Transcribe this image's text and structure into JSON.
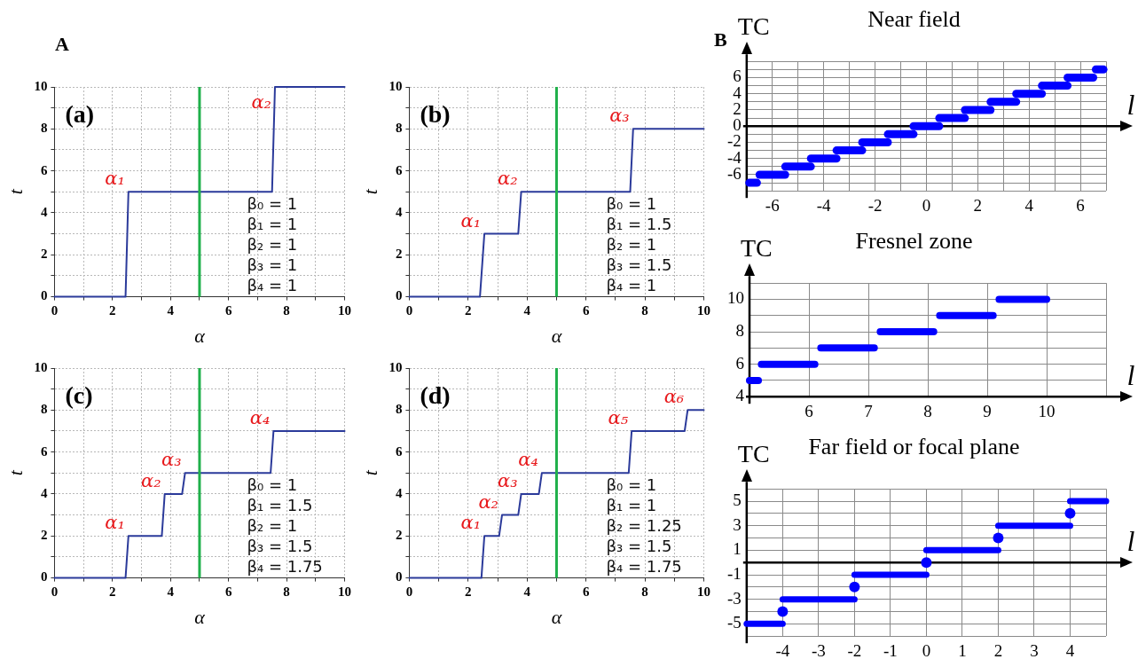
{
  "chart_data": [
    {
      "type": "line",
      "title": "(a)",
      "xlabel": "α",
      "ylabel": "t",
      "xlim": [
        0,
        10
      ],
      "ylim": [
        0,
        10
      ],
      "xticks": [
        0,
        {
          "value": 1,
          "label": null
        },
        2,
        {
          "value": 3,
          "label": null
        },
        4,
        {
          "value": 5,
          "label": null
        },
        6,
        {
          "value": 7,
          "label": null
        },
        8,
        {
          "value": 9,
          "label": null
        },
        10
      ],
      "yticks": [
        0,
        {
          "value": 1,
          "label": null
        },
        2,
        {
          "value": 3,
          "label": null
        },
        4,
        {
          "value": 5,
          "label": null
        },
        6,
        {
          "value": 7,
          "label": null
        },
        8,
        {
          "value": 9,
          "label": null
        },
        10
      ],
      "grid": true,
      "series": [
        {
          "type": "line",
          "color": "#2b3a9a",
          "x": [
            0,
            2.45,
            2.55,
            7.5,
            7.6,
            10
          ],
          "values": [
            0,
            0,
            5,
            5,
            10,
            10
          ]
        }
      ],
      "ref_lines": [
        {
          "axis": "x",
          "value": 5,
          "color": "#1fb04a"
        }
      ],
      "annotations": [
        "A",
        {
          "text": "α₁",
          "x": 2.55,
          "y": 5
        },
        {
          "text": "α₂",
          "x": 7.6,
          "y": 10
        },
        "β₀ = 1",
        "β₁ = 1",
        "β₂ = 1",
        "β₃ = 1",
        "β₄ = 1"
      ]
    },
    {
      "type": "line",
      "title": "(b)",
      "xlabel": "α",
      "ylabel": "t",
      "xlim": [
        0,
        10
      ],
      "ylim": [
        0,
        10
      ],
      "xticks": [
        0,
        {
          "value": 1,
          "label": null
        },
        2,
        {
          "value": 3,
          "label": null
        },
        4,
        {
          "value": 5,
          "label": null
        },
        6,
        {
          "value": 7,
          "label": null
        },
        8,
        {
          "value": 9,
          "label": null
        },
        10
      ],
      "yticks": [
        0,
        {
          "value": 1,
          "label": null
        },
        2,
        {
          "value": 3,
          "label": null
        },
        4,
        {
          "value": 5,
          "label": null
        },
        6,
        {
          "value": 7,
          "label": null
        },
        8,
        {
          "value": 9,
          "label": null
        },
        10
      ],
      "grid": true,
      "series": [
        {
          "type": "line",
          "color": "#2b3a9a",
          "x": [
            0,
            2.4,
            2.55,
            3.7,
            3.8,
            7.5,
            7.6,
            10
          ],
          "values": [
            0,
            0,
            3,
            3,
            5,
            5,
            8,
            8
          ]
        }
      ],
      "ref_lines": [
        {
          "axis": "x",
          "value": 5,
          "color": "#1fb04a"
        }
      ],
      "annotations": [
        {
          "text": "α₁",
          "x": 2.55,
          "y": 3
        },
        {
          "text": "α₂",
          "x": 3.8,
          "y": 5
        },
        {
          "text": "α₃",
          "x": 7.6,
          "y": 8
        },
        "β₀ = 1",
        "β₁ = 1.5",
        "β₂ = 1",
        "β₃ = 1.5",
        "β₄ = 1"
      ]
    },
    {
      "type": "line",
      "title": "(c)",
      "xlabel": "α",
      "ylabel": "t",
      "xlim": [
        0,
        10
      ],
      "ylim": [
        0,
        10
      ],
      "xticks": [
        0,
        {
          "value": 1,
          "label": null
        },
        2,
        {
          "value": 3,
          "label": null
        },
        4,
        {
          "value": 5,
          "label": null
        },
        6,
        {
          "value": 7,
          "label": null
        },
        8,
        {
          "value": 9,
          "label": null
        },
        10
      ],
      "yticks": [
        0,
        {
          "value": 1,
          "label": null
        },
        2,
        {
          "value": 3,
          "label": null
        },
        4,
        {
          "value": 5,
          "label": null
        },
        6,
        {
          "value": 7,
          "label": null
        },
        8,
        {
          "value": 9,
          "label": null
        },
        10
      ],
      "grid": true,
      "series": [
        {
          "type": "line",
          "color": "#2b3a9a",
          "x": [
            0,
            2.45,
            2.55,
            3.7,
            3.8,
            4.4,
            4.5,
            7.45,
            7.55,
            10
          ],
          "values": [
            0,
            0,
            2,
            2,
            4,
            4,
            5,
            5,
            7,
            7
          ]
        }
      ],
      "ref_lines": [
        {
          "axis": "x",
          "value": 5,
          "color": "#1fb04a"
        }
      ],
      "annotations": [
        {
          "text": "α₁",
          "x": 2.55,
          "y": 2
        },
        {
          "text": "α₂",
          "x": 3.8,
          "y": 4
        },
        {
          "text": "α₃",
          "x": 4.5,
          "y": 5
        },
        {
          "text": "α₄",
          "x": 7.55,
          "y": 7
        },
        "β₀ = 1",
        "β₁ = 1.5",
        "β₂ = 1",
        "β₃ = 1.5",
        "β₄ = 1.75"
      ]
    },
    {
      "type": "line",
      "title": "(d)",
      "xlabel": "α",
      "ylabel": "t",
      "xlim": [
        0,
        10
      ],
      "ylim": [
        0,
        10
      ],
      "xticks": [
        0,
        {
          "value": 1,
          "label": null
        },
        2,
        {
          "value": 3,
          "label": null
        },
        4,
        {
          "value": 5,
          "label": null
        },
        6,
        {
          "value": 7,
          "label": null
        },
        8,
        {
          "value": 9,
          "label": null
        },
        10
      ],
      "yticks": [
        0,
        {
          "value": 1,
          "label": null
        },
        2,
        {
          "value": 3,
          "label": null
        },
        4,
        {
          "value": 5,
          "label": null
        },
        6,
        {
          "value": 7,
          "label": null
        },
        8,
        {
          "value": 9,
          "label": null
        },
        10
      ],
      "grid": true,
      "series": [
        {
          "type": "line",
          "color": "#2b3a9a",
          "x": [
            0,
            2.45,
            2.55,
            3.05,
            3.15,
            3.7,
            3.8,
            4.4,
            4.5,
            7.45,
            7.55,
            9.35,
            9.45,
            10
          ],
          "values": [
            0,
            0,
            2,
            2,
            3,
            3,
            4,
            4,
            5,
            5,
            7,
            7,
            8,
            8
          ]
        }
      ],
      "ref_lines": [
        {
          "axis": "x",
          "value": 5,
          "color": "#1fb04a"
        }
      ],
      "annotations": [
        {
          "text": "α₁",
          "x": 2.55,
          "y": 2
        },
        {
          "text": "α₂",
          "x": 3.15,
          "y": 3
        },
        {
          "text": "α₃",
          "x": 3.8,
          "y": 4
        },
        {
          "text": "α₄",
          "x": 4.5,
          "y": 5
        },
        {
          "text": "α₅",
          "x": 7.55,
          "y": 7
        },
        {
          "text": "α₆",
          "x": 9.45,
          "y": 8
        },
        "β₀ = 1",
        "β₁ = 1",
        "β₂ = 1.25",
        "β₃ = 1.5",
        "β₄ = 1.75"
      ]
    },
    {
      "type": "line",
      "title": "Near field",
      "xlabel": "l",
      "ylabel": "TC",
      "xlim": [
        -7,
        7
      ],
      "ylim": [
        -8,
        8
      ],
      "xticks": [
        {
          "value": -7,
          "label": null
        },
        -6,
        {
          "value": -5,
          "label": null
        },
        -4,
        {
          "value": -3,
          "label": null
        },
        -2,
        {
          "value": -1,
          "label": null
        },
        0,
        {
          "value": 1,
          "label": null
        },
        2,
        {
          "value": 3,
          "label": null
        },
        4,
        {
          "value": 5,
          "label": null
        },
        6,
        {
          "value": 7,
          "label": null
        }
      ],
      "yticks": [
        {
          "value": -8,
          "label": null
        },
        {
          "value": -7,
          "label": null
        },
        -6,
        {
          "value": -5,
          "label": null
        },
        -4,
        {
          "value": -3,
          "label": null
        },
        -2,
        {
          "value": -1,
          "label": null
        },
        0,
        {
          "value": 1,
          "label": null
        },
        2,
        {
          "value": 3,
          "label": null
        },
        4,
        {
          "value": 5,
          "label": null
        },
        6,
        {
          "value": 7,
          "label": null
        },
        {
          "value": 8,
          "label": null
        }
      ],
      "grid": true,
      "series": [
        {
          "type": "line",
          "color": "#0000ff",
          "x": [
            -6.9,
            -6.6
          ],
          "values": [
            -7,
            -7
          ]
        },
        {
          "type": "line",
          "color": "#0000ff",
          "x": [
            -6.5,
            -5.5
          ],
          "values": [
            -6,
            -6
          ]
        },
        {
          "type": "line",
          "color": "#0000ff",
          "x": [
            -5.5,
            -4.5
          ],
          "values": [
            -5,
            -5
          ]
        },
        {
          "type": "line",
          "color": "#0000ff",
          "x": [
            -4.5,
            -3.5
          ],
          "values": [
            -4,
            -4
          ]
        },
        {
          "type": "line",
          "color": "#0000ff",
          "x": [
            -3.5,
            -2.5
          ],
          "values": [
            -3,
            -3
          ]
        },
        {
          "type": "line",
          "color": "#0000ff",
          "x": [
            -2.5,
            -1.5
          ],
          "values": [
            -2,
            -2
          ]
        },
        {
          "type": "line",
          "color": "#0000ff",
          "x": [
            -1.5,
            -0.5
          ],
          "values": [
            -1,
            -1
          ]
        },
        {
          "type": "line",
          "color": "#0000ff",
          "x": [
            -0.5,
            0.5
          ],
          "values": [
            0,
            0
          ]
        },
        {
          "type": "line",
          "color": "#0000ff",
          "x": [
            0.5,
            1.5
          ],
          "values": [
            1,
            1
          ]
        },
        {
          "type": "line",
          "color": "#0000ff",
          "x": [
            1.5,
            2.5
          ],
          "values": [
            2,
            2
          ]
        },
        {
          "type": "line",
          "color": "#0000ff",
          "x": [
            2.5,
            3.5
          ],
          "values": [
            3,
            3
          ]
        },
        {
          "type": "line",
          "color": "#0000ff",
          "x": [
            3.5,
            4.5
          ],
          "values": [
            4,
            4
          ]
        },
        {
          "type": "line",
          "color": "#0000ff",
          "x": [
            4.5,
            5.5
          ],
          "values": [
            5,
            5
          ]
        },
        {
          "type": "line",
          "color": "#0000ff",
          "x": [
            5.5,
            6.5
          ],
          "values": [
            6,
            6
          ]
        },
        {
          "type": "line",
          "color": "#0000ff",
          "x": [
            6.6,
            6.9
          ],
          "values": [
            7,
            7
          ]
        }
      ],
      "annotations": [
        "B"
      ]
    },
    {
      "type": "line",
      "title": "Fresnel zone",
      "xlabel": "l",
      "ylabel": "TC",
      "xlim": [
        5,
        11
      ],
      "ylim": [
        4,
        11
      ],
      "xticks": [
        {
          "value": 5,
          "label": null
        },
        6,
        7,
        8,
        9,
        10,
        {
          "value": 11,
          "label": null
        }
      ],
      "yticks": [
        4,
        {
          "value": 5,
          "label": null
        },
        6,
        {
          "value": 7,
          "label": null
        },
        8,
        {
          "value": 9,
          "label": null
        },
        10,
        {
          "value": 11,
          "label": null
        }
      ],
      "grid": true,
      "series": [
        {
          "type": "line",
          "color": "#0000ff",
          "x": [
            5,
            5.15
          ],
          "values": [
            5,
            5
          ]
        },
        {
          "type": "line",
          "color": "#0000ff",
          "x": [
            5.2,
            6.1
          ],
          "values": [
            6,
            6
          ]
        },
        {
          "type": "line",
          "color": "#0000ff",
          "x": [
            6.2,
            7.1
          ],
          "values": [
            7,
            7
          ]
        },
        {
          "type": "line",
          "color": "#0000ff",
          "x": [
            7.2,
            8.1
          ],
          "values": [
            8,
            8
          ]
        },
        {
          "type": "line",
          "color": "#0000ff",
          "x": [
            8.2,
            9.1
          ],
          "values": [
            9,
            9
          ]
        },
        {
          "type": "line",
          "color": "#0000ff",
          "x": [
            9.2,
            10
          ],
          "values": [
            10,
            10
          ]
        }
      ]
    },
    {
      "type": "line",
      "title": "Far field or focal plane",
      "xlabel": "l",
      "ylabel": "TC",
      "xlim": [
        -5,
        5
      ],
      "ylim": [
        -6,
        6
      ],
      "xticks": [
        {
          "value": -5,
          "label": null
        },
        -4,
        -3,
        -2,
        -1,
        0,
        1,
        2,
        3,
        4,
        {
          "value": 5,
          "label": null
        }
      ],
      "yticks": [
        {
          "value": -6,
          "label": null
        },
        -5,
        {
          "value": -4,
          "label": null
        },
        -3,
        {
          "value": -2,
          "label": null
        },
        -1,
        {
          "value": 0,
          "label": null
        },
        1,
        {
          "value": 2,
          "label": null
        },
        3,
        {
          "value": 4,
          "label": null
        },
        5,
        {
          "value": 6,
          "label": null
        }
      ],
      "grid": true,
      "series": [
        {
          "type": "line",
          "color": "#0000ff",
          "x": [
            -5,
            -4
          ],
          "values": [
            -5,
            -5
          ]
        },
        {
          "type": "line",
          "color": "#0000ff",
          "x": [
            -4,
            -2
          ],
          "values": [
            -3,
            -3
          ]
        },
        {
          "type": "line",
          "color": "#0000ff",
          "x": [
            -2,
            0
          ],
          "values": [
            -1,
            -1
          ]
        },
        {
          "type": "line",
          "color": "#0000ff",
          "x": [
            0,
            2
          ],
          "values": [
            1,
            1
          ]
        },
        {
          "type": "line",
          "color": "#0000ff",
          "x": [
            2,
            4
          ],
          "values": [
            3,
            3
          ]
        },
        {
          "type": "line",
          "color": "#0000ff",
          "x": [
            4,
            5
          ],
          "values": [
            5,
            5
          ]
        },
        {
          "type": "scatter",
          "color": "#0000ff",
          "marker": "circle",
          "x": [
            -4,
            -2,
            0,
            2,
            4
          ],
          "values": [
            -4,
            -2,
            0,
            2,
            4
          ]
        }
      ]
    }
  ]
}
